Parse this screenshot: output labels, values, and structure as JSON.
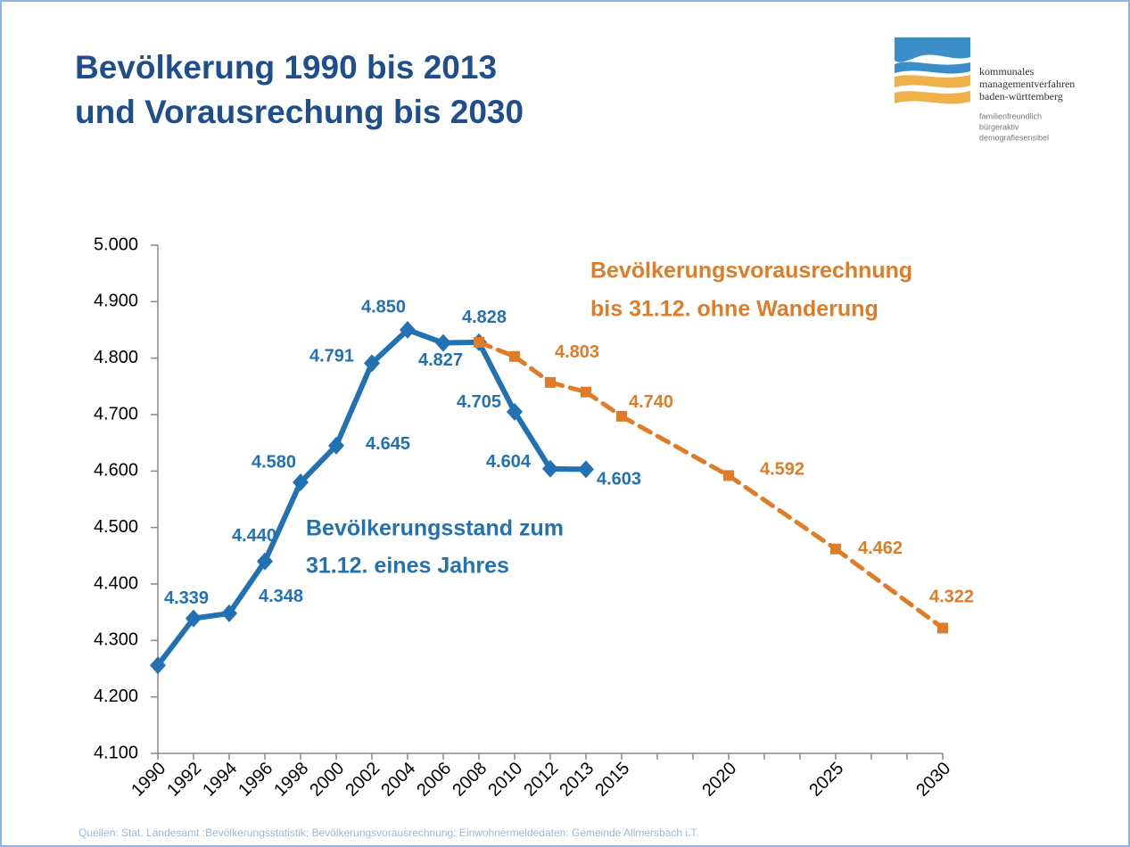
{
  "chart_data": {
    "type": "line",
    "title": [
      "Bevölkerung 1990 bis 2013",
      "und Vorausrechung bis 2030"
    ],
    "logo": [
      "kommunales",
      "managementverfahren",
      "baden-württemberg",
      "familienfreundlich",
      "bürgeraktiv",
      "demografiesensibel"
    ],
    "annotations": [
      [
        "Bevölkerungsvorausrechnung",
        "bis 31.12. ohne Wanderung"
      ],
      [
        "Bevölkerungsstand zum",
        "31.12. eines Jahres"
      ]
    ],
    "source": "Quellen: Stat. Landesamt :Bevölkerungsstatistik; Bevölkerungsvorausrechnung; Einwohnermeldedaten: Gemeinde  Allmersbach i.T.",
    "categories": [
      "1990",
      "1992",
      "1994",
      "1996",
      "1998",
      "2000",
      "2002",
      "2004",
      "2006",
      "2008",
      "2010",
      "2012",
      "2013",
      "2015",
      null,
      null,
      "2020",
      null,
      null,
      "2025",
      null,
      null,
      "2030"
    ],
    "series": [
      {
        "color": "#2271b3",
        "marker": "diamond",
        "values": [
          4256,
          4339,
          4348,
          4440,
          4580,
          4645,
          4791,
          4850,
          4827,
          4828,
          4705,
          4604,
          4603,
          null,
          null,
          null,
          null,
          null,
          null,
          null,
          null,
          null,
          null
        ],
        "value_labels": [
          null,
          "4.339",
          "4.348",
          "4.440",
          "4.580",
          "4.645",
          "4.791",
          "4.850",
          "4.827",
          "4.828",
          "4.705",
          "4.604",
          "4.603",
          null,
          null,
          null,
          null,
          null,
          null,
          null,
          null,
          null,
          null
        ]
      },
      {
        "color": "#e07b28",
        "marker": "square",
        "dashed": true,
        "values": [
          null,
          null,
          null,
          null,
          null,
          null,
          null,
          null,
          null,
          4828,
          4803,
          4757,
          4740,
          4697,
          null,
          null,
          4592,
          null,
          null,
          4462,
          null,
          null,
          4322
        ],
        "value_labels": [
          null,
          null,
          null,
          null,
          null,
          null,
          null,
          null,
          null,
          null,
          "4.803",
          null,
          "4.740",
          null,
          null,
          null,
          "4.592",
          null,
          null,
          "4.462",
          null,
          null,
          "4.322"
        ]
      }
    ],
    "ylim": [
      4100,
      5000
    ],
    "yticks": [
      {
        "value": 4100,
        "label": "4.100"
      },
      {
        "value": 4200,
        "label": "4.200"
      },
      {
        "value": 4300,
        "label": "4.300"
      },
      {
        "value": 4400,
        "label": "4.400"
      },
      {
        "value": 4500,
        "label": "4.500"
      },
      {
        "value": 4600,
        "label": "4.600"
      },
      {
        "value": 4700,
        "label": "4.700"
      },
      {
        "value": 4800,
        "label": "4.800"
      },
      {
        "value": 4900,
        "label": "4.900"
      },
      {
        "value": 5000,
        "label": "5.000"
      }
    ],
    "grid": false
  }
}
